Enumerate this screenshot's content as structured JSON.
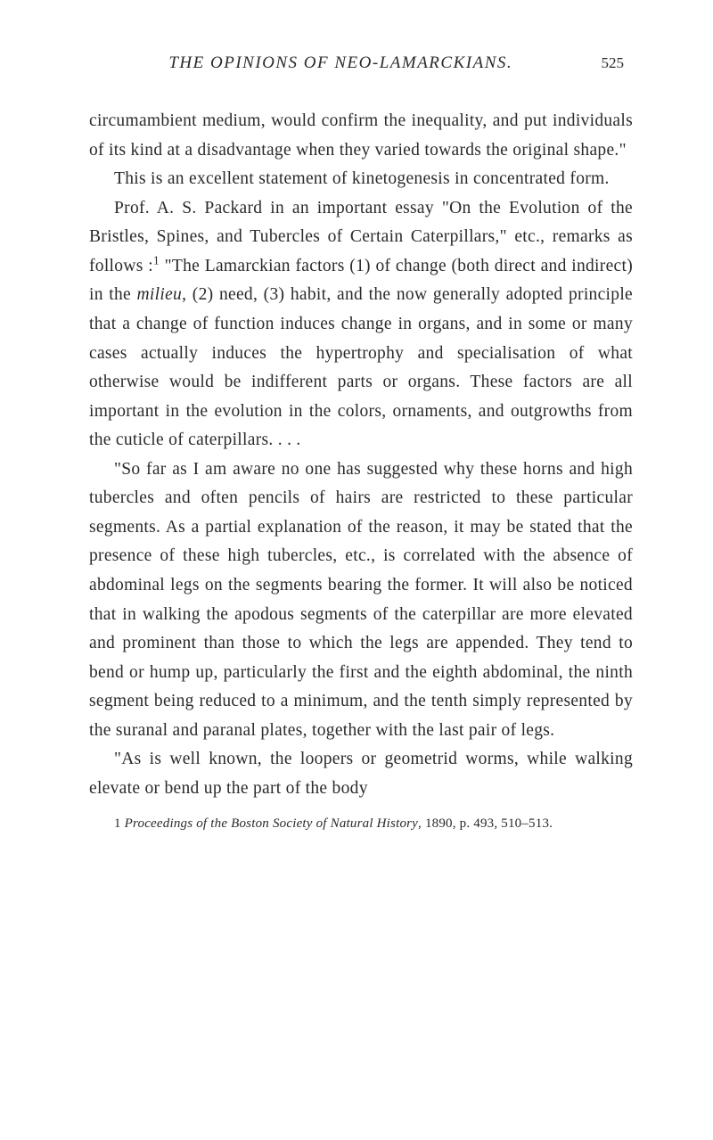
{
  "header": {
    "title": "THE OPINIONS OF NEO-LAMARCKIANS.",
    "page_number": "525"
  },
  "paragraphs": {
    "p1": "circumambient medium, would confirm the inequality, and put individuals of its kind at a disadvantage when they varied towards the original shape.\"",
    "p2": "This is an excellent statement of kinetogenesis in concentrated form.",
    "p3_part1": "Prof. A. S. Packard in an important essay \"On the Evolution of the Bristles, Spines, and Tubercles of Certain Caterpillars,\" etc., remarks as follows :",
    "p3_sup": "1",
    "p3_part2_prefix": "\"The Lamarckian factors (1) of change (both direct and indirect) in the ",
    "p3_italic": "milieu",
    "p3_part2_suffix": ", (2) need, (3) habit, and the now generally adopted principle that a change of func­tion induces change in organs, and in some or many cases actually induces the hypertrophy and specialisa­tion of what otherwise would be indifferent parts or organs. These factors are all important in the evolu­tion in the colors, ornaments, and outgrowths from the cuticle of caterpillars. . . .",
    "p4": "\"So far as I am aware no one has suggested why these horns and high tubercles and often pencils of hairs are restricted to these particular segments. As a partial explanation of the reason, it may be stated that the presence of these high tubercles, etc., is cor­related with the absence of abdominal legs on the seg­ments bearing the former. It will also be noticed that in walking the apodous segments of the caterpillar are more elevated and prominent than those to which the legs are appended. They tend to bend or hump up, particularly the first and the eighth abdominal, the ninth segment being reduced to a minimum, and the tenth simply represented by the suranal and paranal plates, together with the last pair of legs.",
    "p5": "\"As is well known, the loopers or geometrid worms, while walking elevate or bend up the part of the body"
  },
  "footnote": {
    "marker": "1",
    "text_italic": "Proceedings of the Boston Society of Natural History",
    "text_rest": ", 1890, p. 493, 510–513."
  },
  "colors": {
    "background": "#ffffff",
    "text": "#2a2a2a"
  },
  "typography": {
    "body_fontsize": 19.5,
    "header_fontsize": 19,
    "footnote_fontsize": 15,
    "line_height": 1.67,
    "font_family": "Georgia, Times New Roman, serif"
  }
}
